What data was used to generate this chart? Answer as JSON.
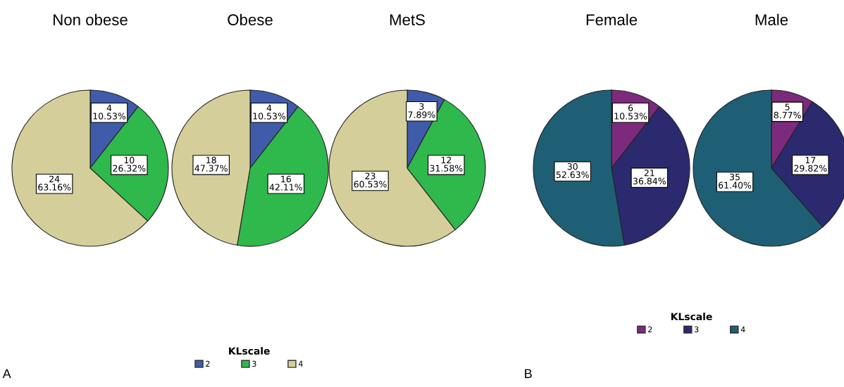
{
  "chart_data": [
    {
      "type": "pie",
      "title": "Non obese",
      "categories": [
        "2",
        "3",
        "4"
      ],
      "values": [
        4,
        10,
        24
      ],
      "colors": [
        "#3f5ba9",
        "#2fb84b",
        "#d4cf9a"
      ],
      "value_labels": [
        "4\n10.53%",
        "10\n26.32%",
        "24\n63.16%"
      ],
      "legend": "bottom",
      "legend_title": "KLscale",
      "annotations": [
        "A"
      ]
    },
    {
      "type": "pie",
      "title": "Obese",
      "categories": [
        null,
        null,
        null
      ],
      "values": [
        4,
        16,
        18
      ],
      "colors": [
        "#3f5ba9",
        "#2fb84b",
        "#d4cf9a"
      ],
      "value_labels": [
        "4\n10.53%",
        "16\n42.11%",
        "18\n47.37%"
      ]
    },
    {
      "type": "pie",
      "title": "MetS",
      "categories": [
        null,
        null,
        null
      ],
      "values": [
        3,
        12,
        23
      ],
      "colors": [
        "#3f5ba9",
        "#2fb84b",
        "#d4cf9a"
      ],
      "value_labels": [
        "3\n7.89%",
        "12\n31.58%",
        "23\n60.53%"
      ]
    },
    {
      "type": "pie",
      "title": "Female",
      "categories": [
        "2",
        "3",
        "4"
      ],
      "values": [
        6,
        21,
        30
      ],
      "colors": [
        "#7c2a7c",
        "#2b2a6f",
        "#1f5f75"
      ],
      "value_labels": [
        "6\n10.53%",
        "21\n36.84%",
        "30\n52.63%"
      ],
      "legend": "bottom",
      "legend_title": "KLscale",
      "annotations": [
        "B"
      ]
    },
    {
      "type": "pie",
      "title": "Male",
      "categories": [
        null,
        null,
        null
      ],
      "values": [
        5,
        17,
        35
      ],
      "colors": [
        "#7c2a7c",
        "#2b2a6f",
        "#1f5f75"
      ],
      "value_labels": [
        "5\n8.77%",
        "17\n29.82%",
        "35\n61.40%"
      ]
    }
  ]
}
